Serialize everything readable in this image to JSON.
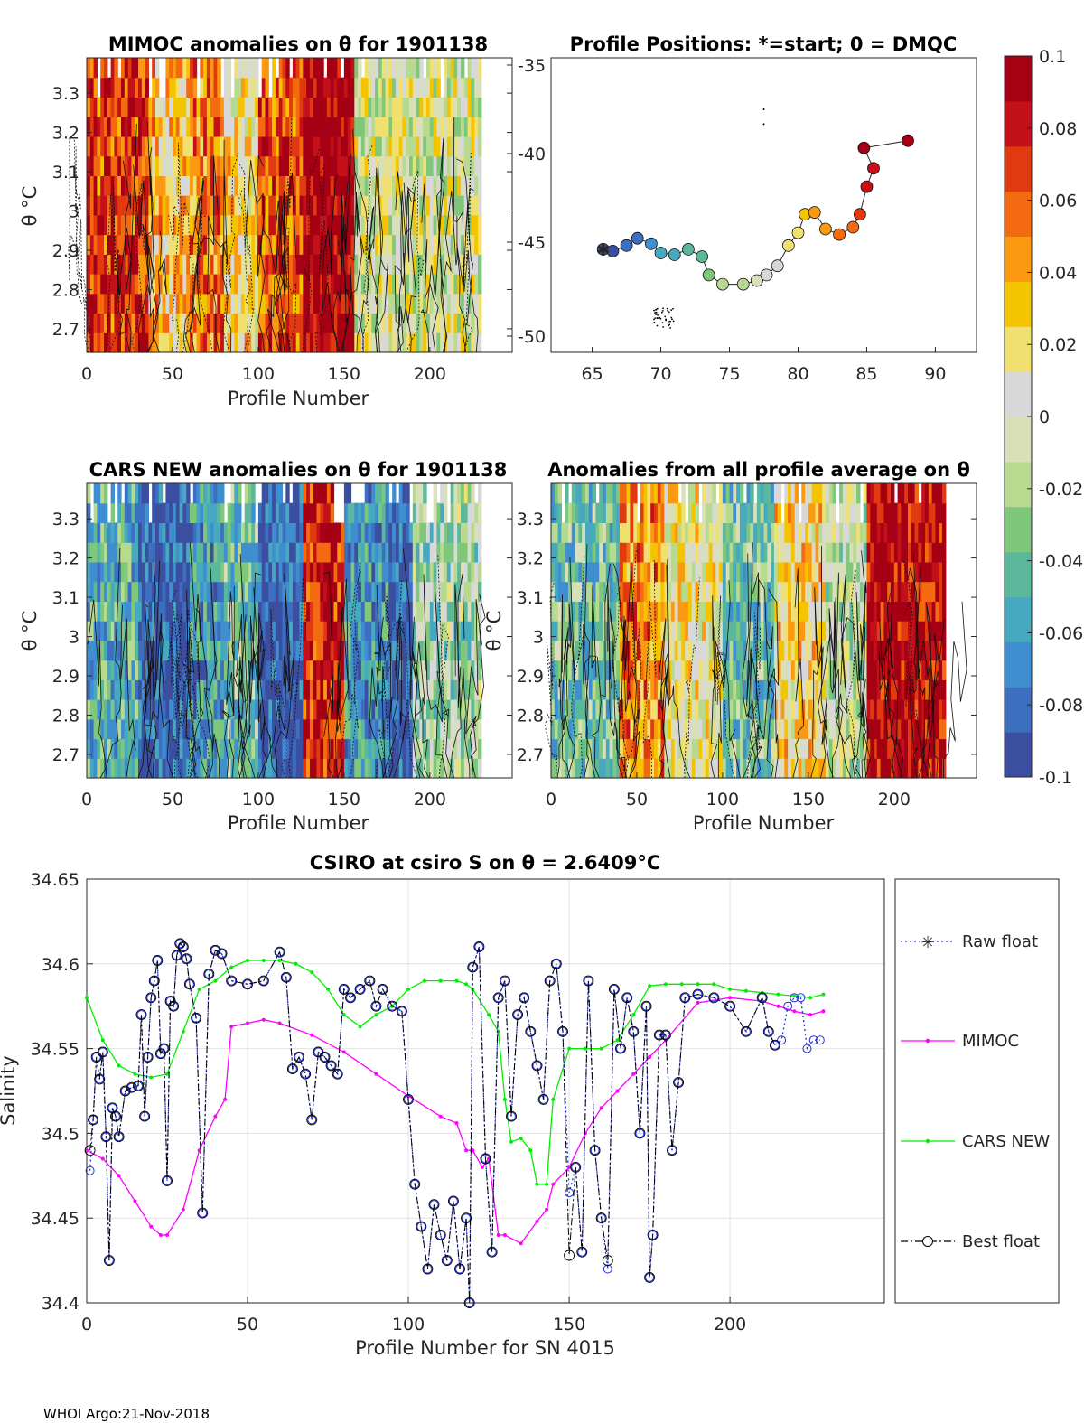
{
  "footer": "WHOI Argo:21-Nov-2018",
  "colors": {
    "raw_float": "#1f2fe0",
    "mimoc": "#ff00ff",
    "cars_new": "#00ee00",
    "best_float": "#000000",
    "colormap": [
      "#3b4ea0",
      "#3d6fc0",
      "#3f8fd0",
      "#47a9c0",
      "#5bb89a",
      "#7fc77a",
      "#b8d990",
      "#d9dfb8",
      "#d8d8d8",
      "#f0e070",
      "#f5c400",
      "#fb9a10",
      "#f46a10",
      "#e23a10",
      "#c41018",
      "#a50014"
    ]
  },
  "chart_data": [
    {
      "id": "mimoc-panel",
      "type": "heatmap",
      "title": "MIMOC anomalies on θ  for 1901138",
      "xlabel": "Profile Number",
      "ylabel": "θ °C",
      "xlim": [
        0,
        248
      ],
      "ylim": [
        2.64,
        3.39
      ],
      "xticks": [
        0,
        50,
        100,
        150,
        200
      ],
      "yticks": [
        2.7,
        2.8,
        2.9,
        3,
        3.1,
        3.2,
        3.3
      ],
      "ytick_labels": [
        "2.7",
        "2.8",
        "2.9",
        "3",
        "3.1",
        "3.2",
        "3.3"
      ],
      "data_xmax": 229,
      "bands": [
        {
          "x": [
            0,
            35
          ],
          "value": 0.07
        },
        {
          "x": [
            35,
            60
          ],
          "value": 0.03
        },
        {
          "x": [
            60,
            80
          ],
          "value": 0.05
        },
        {
          "x": [
            80,
            100
          ],
          "value": 0.02
        },
        {
          "x": [
            100,
            125
          ],
          "value": 0.06
        },
        {
          "x": [
            125,
            155
          ],
          "value": 0.1
        },
        {
          "x": [
            155,
            180
          ],
          "value": 0.0
        },
        {
          "x": [
            180,
            229
          ],
          "value": 0.0
        }
      ],
      "right_axis_ticks": [
        "-35",
        "-40",
        "-45",
        "-50"
      ]
    },
    {
      "id": "position-panel",
      "type": "scatter",
      "title": "Profile Positions: *=start; 0 = DMQC",
      "xlim": [
        62,
        93
      ],
      "ylim": [
        -51,
        -35
      ],
      "xticks": [
        65,
        70,
        75,
        80,
        85,
        90
      ],
      "yticks": [
        -35,
        -40,
        -45,
        -50
      ],
      "track": [
        [
          65.8,
          -45.4
        ],
        [
          66.5,
          -45.5
        ],
        [
          67.5,
          -45.2
        ],
        [
          68.3,
          -44.8
        ],
        [
          69.3,
          -45.1
        ],
        [
          70,
          -45.6
        ],
        [
          71,
          -45.7
        ],
        [
          72,
          -45.4
        ],
        [
          73,
          -45.8
        ],
        [
          73.5,
          -46.8
        ],
        [
          74.5,
          -47.3
        ],
        [
          76,
          -47.3
        ],
        [
          77,
          -47.1
        ],
        [
          77.7,
          -46.8
        ],
        [
          78.5,
          -46.3
        ],
        [
          79.3,
          -45.2
        ],
        [
          80,
          -44.5
        ],
        [
          80.5,
          -43.5
        ],
        [
          81.2,
          -43.4
        ],
        [
          82,
          -44.3
        ],
        [
          83,
          -44.6
        ],
        [
          84,
          -44.2
        ],
        [
          84.5,
          -43.5
        ],
        [
          85,
          -42
        ],
        [
          85.5,
          -41
        ],
        [
          84.8,
          -39.9
        ],
        [
          88,
          -39.5
        ]
      ],
      "colorbar": {
        "min": -0.1,
        "max": 0.1,
        "tick_labels": [
          "0.1",
          "0.08",
          "0.06",
          "0.04",
          "0.02",
          "0",
          "-0.02",
          "-0.04",
          "-0.06",
          "-0.08",
          "-0.1"
        ]
      }
    },
    {
      "id": "cars-panel",
      "type": "heatmap",
      "title": "CARS NEW anomalies on θ for 1901138",
      "xlabel": "Profile Number",
      "ylabel": "θ °C",
      "xlim": [
        0,
        248
      ],
      "ylim": [
        2.64,
        3.39
      ],
      "xticks": [
        0,
        50,
        100,
        150,
        200
      ],
      "yticks": [
        2.7,
        2.8,
        2.9,
        3,
        3.1,
        3.2,
        3.3
      ],
      "ytick_labels": [
        "2.7",
        "2.8",
        "2.9",
        "3",
        "3.1",
        "3.2",
        "3.3"
      ],
      "data_xmax": 229,
      "bands": [
        {
          "x": [
            0,
            30
          ],
          "value": -0.05
        },
        {
          "x": [
            30,
            60
          ],
          "value": -0.09
        },
        {
          "x": [
            60,
            80
          ],
          "value": -0.06
        },
        {
          "x": [
            80,
            100
          ],
          "value": -0.04
        },
        {
          "x": [
            100,
            125
          ],
          "value": -0.09
        },
        {
          "x": [
            125,
            150
          ],
          "value": 0.08
        },
        {
          "x": [
            150,
            175
          ],
          "value": -0.06
        },
        {
          "x": [
            175,
            190
          ],
          "value": -0.09
        },
        {
          "x": [
            190,
            229
          ],
          "value": -0.02
        }
      ]
    },
    {
      "id": "avg-panel",
      "type": "heatmap",
      "title": "Anomalies from all profile average on θ",
      "xlabel": "Profile Number",
      "ylabel": "θ °C",
      "xlim": [
        0,
        248
      ],
      "ylim": [
        2.64,
        3.39
      ],
      "xticks": [
        0,
        50,
        100,
        150,
        200
      ],
      "yticks": [
        2.7,
        2.8,
        2.9,
        3,
        3.1,
        3.2,
        3.3
      ],
      "ytick_labels": [
        "2.7",
        "2.8",
        "2.9",
        "3",
        "3.1",
        "3.2",
        "3.3"
      ],
      "data_xmax": 229,
      "bands": [
        {
          "x": [
            0,
            40
          ],
          "value": -0.04
        },
        {
          "x": [
            40,
            65
          ],
          "value": 0.05
        },
        {
          "x": [
            65,
            100
          ],
          "value": 0.01
        },
        {
          "x": [
            100,
            130
          ],
          "value": -0.04
        },
        {
          "x": [
            130,
            160
          ],
          "value": 0.02
        },
        {
          "x": [
            160,
            184
          ],
          "value": -0.01
        },
        {
          "x": [
            184,
            229
          ],
          "value": 0.09
        }
      ]
    },
    {
      "id": "salinity-panel",
      "type": "line",
      "title": "CSIRO at csiro S on θ = 2.6409°C",
      "xlabel": "Profile Number for SN 4015",
      "ylabel": "Salinity",
      "xlim": [
        0,
        248
      ],
      "ylim": [
        34.4,
        34.65
      ],
      "xticks": [
        0,
        50,
        100,
        150,
        200
      ],
      "yticks": [
        34.4,
        34.45,
        34.5,
        34.55,
        34.6,
        34.65
      ],
      "ytick_labels": [
        "34.4",
        "34.45",
        "34.5",
        "34.55",
        "34.6",
        "34.65"
      ],
      "legend": [
        "Raw float",
        "MIMOC",
        "CARS NEW",
        "Best float"
      ],
      "series": [
        {
          "name": "Raw float",
          "x": [
            1,
            2,
            3,
            4,
            5,
            6,
            7,
            8,
            9,
            10,
            12,
            14,
            16,
            17,
            18,
            19,
            20,
            21,
            22,
            23,
            24,
            25,
            26,
            27,
            28,
            29,
            30,
            31,
            32,
            34,
            36,
            38,
            40,
            42,
            45,
            50,
            55,
            60,
            62,
            64,
            66,
            68,
            70,
            72,
            74,
            76,
            78,
            80,
            82,
            85,
            88,
            90,
            92,
            95,
            98,
            100,
            102,
            104,
            106,
            108,
            110,
            112,
            114,
            116,
            118,
            119,
            120,
            122,
            124,
            126,
            128,
            130,
            132,
            134,
            136,
            138,
            140,
            142,
            144,
            146,
            148,
            150,
            152,
            154,
            156,
            158,
            160,
            162,
            164,
            166,
            168,
            170,
            172,
            174,
            175,
            176,
            178,
            180,
            182,
            184,
            186,
            190,
            195,
            200,
            205,
            210,
            212,
            214,
            216,
            218,
            220,
            222,
            224,
            226,
            228
          ],
          "values": [
            34.478,
            34.508,
            34.545,
            34.532,
            34.548,
            34.498,
            34.425,
            34.515,
            34.51,
            34.498,
            34.525,
            34.527,
            34.528,
            34.57,
            34.51,
            34.545,
            34.58,
            34.59,
            34.602,
            34.547,
            34.55,
            34.472,
            34.578,
            34.575,
            34.605,
            34.612,
            34.61,
            34.603,
            34.588,
            34.568,
            34.453,
            34.594,
            34.608,
            34.606,
            34.59,
            34.588,
            34.59,
            34.607,
            34.592,
            34.538,
            34.545,
            34.535,
            34.508,
            34.548,
            34.545,
            34.54,
            34.535,
            34.585,
            34.58,
            34.585,
            34.59,
            34.575,
            34.585,
            34.575,
            34.572,
            34.52,
            34.47,
            34.445,
            34.42,
            34.458,
            34.44,
            34.425,
            34.46,
            34.42,
            34.45,
            34.4,
            34.598,
            34.61,
            34.485,
            34.43,
            34.58,
            34.59,
            34.51,
            34.57,
            34.58,
            34.56,
            34.54,
            34.52,
            34.59,
            34.6,
            34.56,
            34.465,
            34.48,
            34.43,
            34.59,
            34.49,
            34.45,
            34.42,
            34.585,
            34.55,
            34.58,
            34.56,
            34.5,
            34.575,
            34.415,
            34.44,
            34.558,
            34.558,
            34.49,
            34.53,
            34.58,
            34.582,
            34.58,
            34.575,
            34.56,
            34.58,
            34.56,
            34.552,
            34.555,
            34.575,
            34.58,
            34.58,
            34.55,
            34.555,
            34.555
          ]
        },
        {
          "name": "MIMOC",
          "x": [
            0,
            5,
            10,
            15,
            20,
            23,
            25,
            30,
            35,
            40,
            43,
            45,
            50,
            55,
            60,
            70,
            80,
            90,
            100,
            110,
            115,
            118,
            120,
            123,
            125,
            128,
            130,
            135,
            140,
            143,
            145,
            150,
            155,
            160,
            165,
            170,
            175,
            180,
            190,
            200,
            210,
            215,
            220,
            225,
            229
          ],
          "values": [
            34.49,
            34.485,
            34.475,
            34.46,
            34.445,
            34.44,
            34.44,
            34.455,
            34.49,
            34.51,
            34.52,
            34.563,
            34.565,
            34.567,
            34.565,
            34.558,
            34.548,
            34.535,
            34.522,
            34.51,
            34.506,
            34.49,
            34.49,
            34.48,
            34.485,
            34.44,
            34.44,
            34.435,
            34.448,
            34.455,
            34.47,
            34.48,
            34.5,
            34.515,
            34.525,
            34.535,
            34.545,
            34.555,
            34.577,
            34.58,
            34.578,
            34.575,
            34.572,
            34.57,
            34.572
          ]
        },
        {
          "name": "CARS NEW",
          "x": [
            0,
            5,
            10,
            15,
            20,
            25,
            30,
            35,
            40,
            45,
            50,
            55,
            60,
            65,
            70,
            75,
            80,
            85,
            90,
            95,
            100,
            105,
            110,
            115,
            118,
            120,
            125,
            128,
            130,
            132,
            135,
            138,
            140,
            143,
            145,
            150,
            155,
            160,
            165,
            170,
            175,
            180,
            185,
            190,
            195,
            200,
            205,
            210,
            215,
            220,
            225,
            229
          ],
          "values": [
            34.58,
            34.555,
            34.54,
            34.535,
            34.533,
            34.535,
            34.56,
            34.585,
            34.59,
            34.598,
            34.602,
            34.602,
            34.602,
            34.6,
            34.595,
            34.585,
            34.57,
            34.563,
            34.57,
            34.575,
            34.585,
            34.59,
            34.59,
            34.59,
            34.588,
            34.585,
            34.57,
            34.56,
            34.52,
            34.495,
            34.497,
            34.49,
            34.47,
            34.47,
            34.52,
            34.55,
            34.55,
            34.55,
            34.555,
            34.57,
            34.587,
            34.588,
            34.588,
            34.588,
            34.588,
            34.585,
            34.584,
            34.583,
            34.582,
            34.581,
            34.58,
            34.582
          ]
        },
        {
          "name": "Best float",
          "x": [
            1,
            2,
            3,
            4,
            5,
            6,
            7,
            8,
            9,
            10,
            12,
            14,
            16,
            17,
            18,
            19,
            20,
            21,
            22,
            23,
            24,
            25,
            26,
            27,
            28,
            29,
            30,
            31,
            32,
            34,
            36,
            38,
            40,
            42,
            45,
            50,
            55,
            60,
            62,
            64,
            66,
            68,
            70,
            72,
            74,
            76,
            78,
            80,
            82,
            85,
            88,
            90,
            92,
            95,
            98,
            100,
            102,
            104,
            106,
            108,
            110,
            112,
            114,
            116,
            118,
            119,
            120,
            122,
            124,
            126,
            128,
            130,
            132,
            134,
            136,
            138,
            140,
            142,
            144,
            146,
            148,
            150,
            152,
            154,
            156,
            158,
            160,
            162,
            164,
            166,
            168,
            170,
            172,
            174,
            175,
            176,
            178,
            180,
            182,
            184,
            186,
            190,
            195,
            200,
            205,
            210,
            212,
            214
          ],
          "values": [
            34.49,
            34.508,
            34.545,
            34.532,
            34.548,
            34.498,
            34.425,
            34.515,
            34.51,
            34.498,
            34.525,
            34.527,
            34.528,
            34.57,
            34.51,
            34.545,
            34.58,
            34.59,
            34.602,
            34.547,
            34.55,
            34.472,
            34.578,
            34.575,
            34.605,
            34.612,
            34.61,
            34.603,
            34.588,
            34.568,
            34.453,
            34.594,
            34.608,
            34.606,
            34.59,
            34.588,
            34.59,
            34.607,
            34.592,
            34.538,
            34.545,
            34.535,
            34.508,
            34.548,
            34.545,
            34.54,
            34.535,
            34.585,
            34.58,
            34.585,
            34.59,
            34.575,
            34.585,
            34.575,
            34.572,
            34.52,
            34.47,
            34.445,
            34.42,
            34.458,
            34.44,
            34.425,
            34.46,
            34.42,
            34.45,
            34.4,
            34.598,
            34.61,
            34.485,
            34.43,
            34.58,
            34.59,
            34.51,
            34.57,
            34.58,
            34.56,
            34.54,
            34.52,
            34.59,
            34.6,
            34.56,
            34.428,
            34.48,
            34.43,
            34.59,
            34.49,
            34.45,
            34.425,
            34.585,
            34.55,
            34.58,
            34.56,
            34.5,
            34.575,
            34.415,
            34.44,
            34.558,
            34.558,
            34.49,
            34.53,
            34.58,
            34.582,
            34.58,
            34.575,
            34.56,
            34.58,
            34.56,
            34.552
          ]
        }
      ]
    }
  ]
}
